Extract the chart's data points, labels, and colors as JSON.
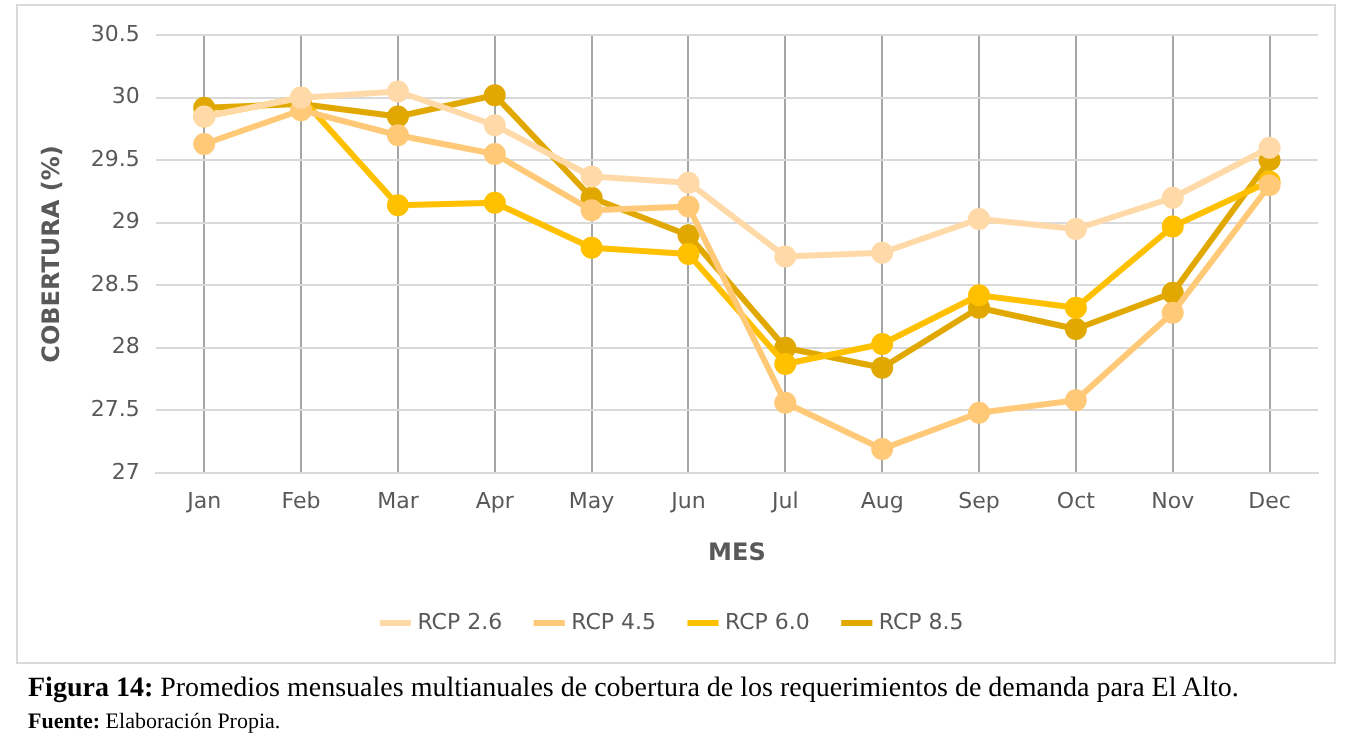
{
  "chart_data": {
    "type": "line",
    "xlabel": "MES",
    "ylabel": "COBERTURA (%)",
    "categories": [
      "Jan",
      "Feb",
      "Mar",
      "Apr",
      "May",
      "Jun",
      "Jul",
      "Aug",
      "Sep",
      "Oct",
      "Nov",
      "Dec"
    ],
    "series": [
      {
        "name": "RCP 2.6",
        "color": "#ffdaa8",
        "values": [
          29.85,
          30.0,
          30.05,
          29.78,
          29.37,
          29.32,
          28.73,
          28.76,
          29.03,
          28.95,
          29.2,
          29.6
        ]
      },
      {
        "name": "RCP 4.5",
        "color": "#ffc978",
        "values": [
          29.63,
          29.9,
          29.7,
          29.55,
          29.1,
          29.13,
          27.56,
          27.19,
          27.48,
          27.58,
          28.28,
          29.3
        ]
      },
      {
        "name": "RCP 6.0",
        "color": "#ffc000",
        "values": [
          29.85,
          30.0,
          29.14,
          29.16,
          28.8,
          28.75,
          27.87,
          28.03,
          28.42,
          28.32,
          28.97,
          29.33
        ]
      },
      {
        "name": "RCP 8.5",
        "color": "#e0a800",
        "values": [
          29.92,
          29.95,
          29.85,
          30.02,
          29.2,
          28.9,
          28.0,
          27.84,
          28.32,
          28.15,
          28.44,
          29.5
        ]
      }
    ],
    "ylim": [
      27,
      30.5
    ],
    "yticks": [
      27,
      27.5,
      28,
      28.5,
      29,
      29.5,
      30,
      30.5
    ],
    "grid": true,
    "legend": "bottom",
    "marker": "circle",
    "line_style": "solid",
    "annotations": [
      "Figura 14: Promedios mensuales multianuales de cobertura de los requerimientos de demanda para El Alto.",
      "Fuente: Elaboración Propia."
    ]
  }
}
